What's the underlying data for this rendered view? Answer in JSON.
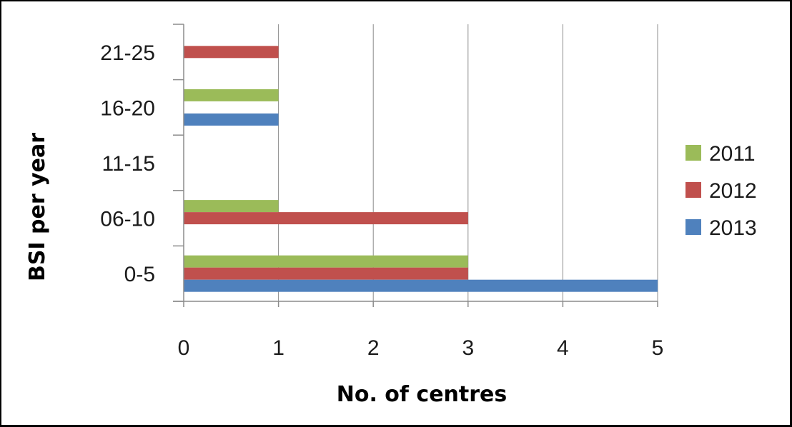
{
  "chart_data": {
    "type": "bar",
    "orientation": "horizontal",
    "categories": [
      "0-5",
      "06-10",
      "11-15",
      "16-20",
      "21-25"
    ],
    "series": [
      {
        "name": "2011",
        "color": "#9bbb59",
        "values": [
          3,
          1,
          0,
          1,
          0
        ]
      },
      {
        "name": "2012",
        "color": "#c0504d",
        "values": [
          3,
          3,
          0,
          0,
          1
        ]
      },
      {
        "name": "2013",
        "color": "#4f81bd",
        "values": [
          5,
          0,
          0,
          1,
          0
        ]
      }
    ],
    "xlabel": "No. of centres",
    "ylabel": "BSI per year",
    "xlim": [
      0,
      5
    ],
    "xticks": [
      "0",
      "1",
      "2",
      "3",
      "4",
      "5"
    ],
    "grid": "vertical",
    "legend_position": "right"
  }
}
